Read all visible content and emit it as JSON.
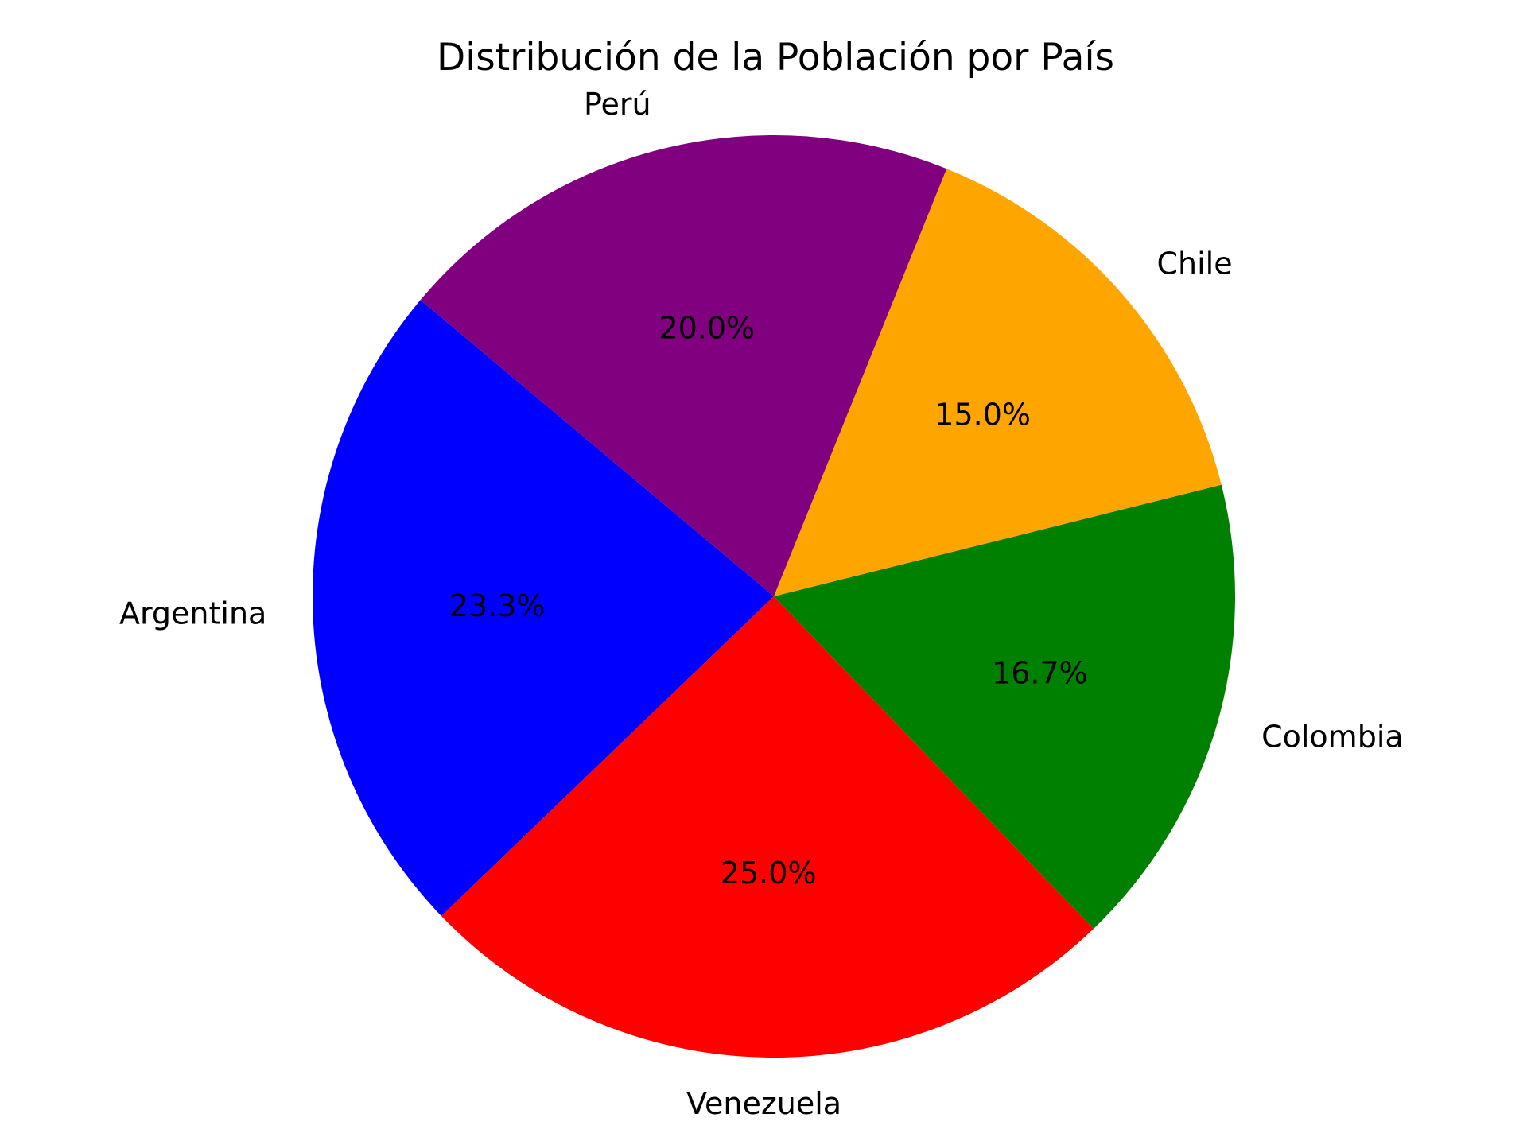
{
  "chart_data": {
    "type": "pie",
    "title": "Distribución de la Población por País",
    "start_angle_deg": 140,
    "direction": "counterclockwise",
    "slices": [
      {
        "label": "Argentina",
        "value": 23.3,
        "pct_label": "23.3%",
        "color": "#0000ff"
      },
      {
        "label": "Venezuela",
        "value": 25.0,
        "pct_label": "25.0%",
        "color": "#ff0000"
      },
      {
        "label": "Colombia",
        "value": 16.7,
        "pct_label": "16.7%",
        "color": "#008000"
      },
      {
        "label": "Chile",
        "value": 15.0,
        "pct_label": "15.0%",
        "color": "#ffa500"
      },
      {
        "label": "Perú",
        "value": 20.0,
        "pct_label": "20.0%",
        "color": "#800080"
      }
    ]
  }
}
